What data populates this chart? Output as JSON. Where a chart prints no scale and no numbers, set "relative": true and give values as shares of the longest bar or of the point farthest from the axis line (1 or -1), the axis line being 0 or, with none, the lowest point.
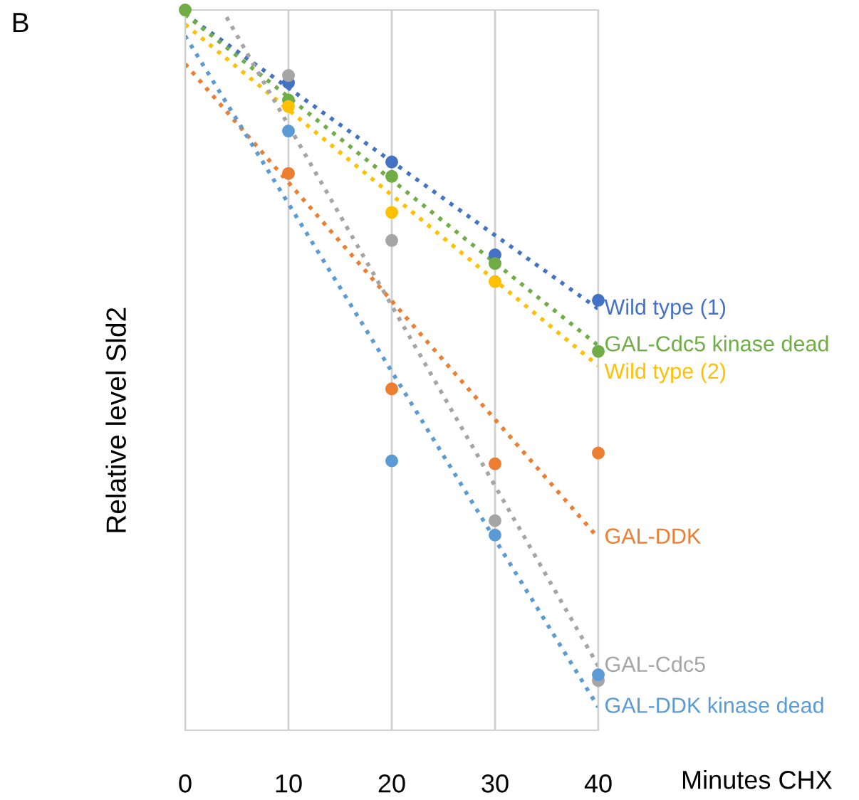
{
  "chart_data": {
    "type": "scatter",
    "relative": true,
    "xlabel": "Minutes CHX",
    "ylabel": "Relative level Sld2",
    "annotations": [
      "B"
    ],
    "x": [
      0,
      10,
      20,
      30,
      40
    ],
    "xlim": [
      0,
      40
    ],
    "xticks": [
      0,
      10,
      20,
      30,
      40
    ],
    "grid": "x",
    "legend": false,
    "series": [
      {
        "color": "#4472c4",
        "marker": "circle",
        "values": [
          null,
          0.899,
          0.789,
          0.66,
          0.597
        ]
      },
      {
        "color": "#70ad47",
        "marker": "circle",
        "values": [
          1,
          0.875,
          0.769,
          0.648,
          0.526
        ]
      },
      {
        "color": "#ffc000",
        "marker": "circle",
        "values": [
          null,
          0.866,
          0.719,
          0.623,
          null
        ]
      },
      {
        "color": "#ed7d31",
        "marker": "circle",
        "values": [
          null,
          0.773,
          0.474,
          0.37,
          0.385
        ]
      },
      {
        "color": "#a5a5a5",
        "marker": "circle",
        "values": [
          null,
          0.909,
          0.68,
          0.291,
          0.069
        ]
      },
      {
        "color": "#5b9bd5",
        "marker": "circle",
        "values": [
          null,
          0.832,
          0.374,
          0.271,
          0.077
        ]
      },
      {
        "type": "line",
        "name": "Wild type (1)",
        "color": "#4472c4",
        "line_style": "dotted",
        "x": [
          0,
          40
        ],
        "values": [
          0.994,
          0.585
        ]
      },
      {
        "type": "line",
        "name": "GAL-Cdc5 kinase dead",
        "color": "#70ad47",
        "line_style": "dotted",
        "x": [
          0,
          40
        ],
        "values": [
          0.994,
          0.534
        ]
      },
      {
        "type": "line",
        "name": "Wild type (2)",
        "color": "#ffc000",
        "line_style": "dotted",
        "x": [
          0,
          40
        ],
        "values": [
          0.98,
          0.506
        ]
      },
      {
        "type": "line",
        "name": "GAL-DDK",
        "color": "#ed7d31",
        "line_style": "dotted",
        "x": [
          0,
          40
        ],
        "values": [
          0.925,
          0.267
        ]
      },
      {
        "type": "line",
        "name": "GAL-Cdc5",
        "color": "#a5a5a5",
        "line_style": "dotted",
        "x": [
          4,
          40
        ],
        "values": [
          0.99,
          0.089
        ]
      },
      {
        "type": "line",
        "name": "GAL-DDK kinase dead",
        "color": "#5b9bd5",
        "line_style": "dotted",
        "x": [
          0,
          40
        ],
        "values": [
          0.964,
          0.032
        ]
      }
    ]
  }
}
